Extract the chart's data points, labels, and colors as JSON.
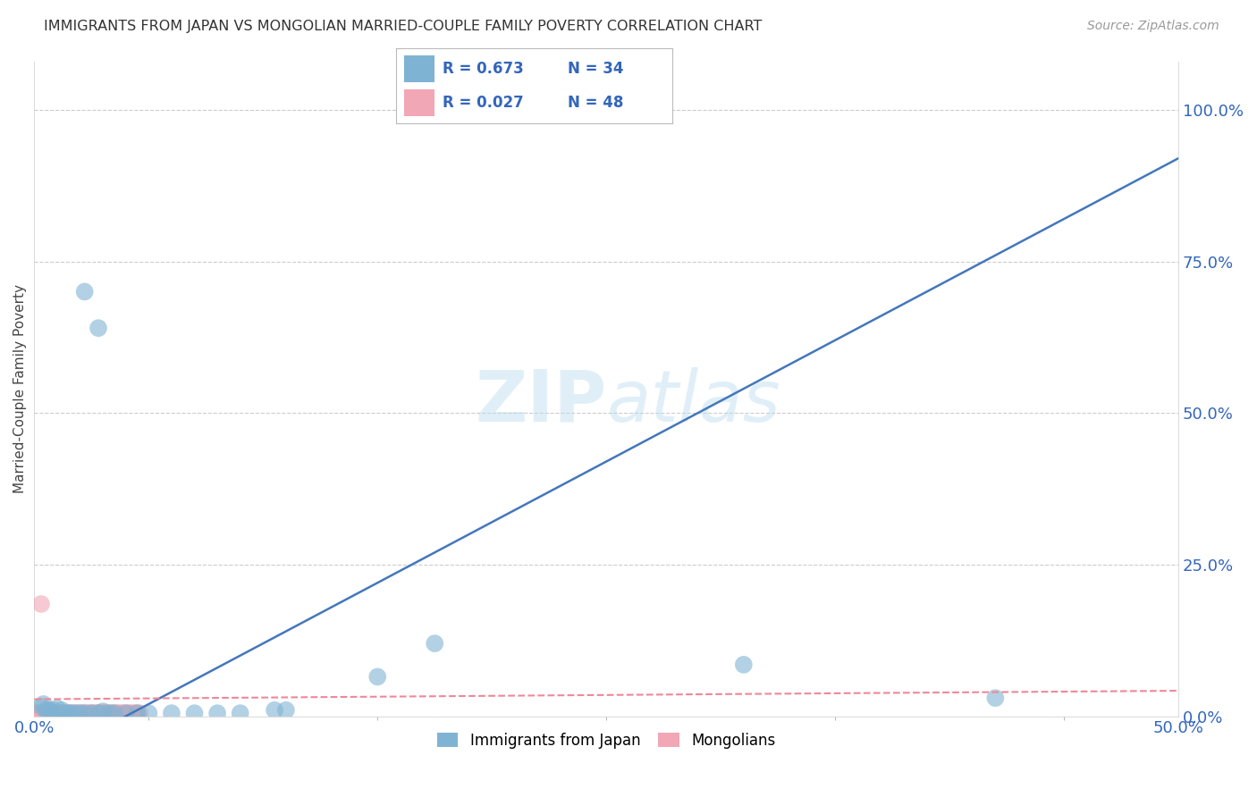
{
  "title": "IMMIGRANTS FROM JAPAN VS MONGOLIAN MARRIED-COUPLE FAMILY POVERTY CORRELATION CHART",
  "source": "Source: ZipAtlas.com",
  "ylabel": "Married-Couple Family Poverty",
  "xlim": [
    0.0,
    0.5
  ],
  "ylim": [
    0.0,
    1.08
  ],
  "ytick_labels": [
    "0.0%",
    "25.0%",
    "50.0%",
    "75.0%",
    "100.0%"
  ],
  "yticks": [
    0.0,
    0.25,
    0.5,
    0.75,
    1.0
  ],
  "watermark": "ZIPatlas",
  "blue_color": "#7FB3D3",
  "pink_color": "#F1A7B5",
  "trend_blue_color": "#4477BB",
  "trend_pink_color": "#EE8899",
  "blue_scatter": [
    [
      0.003,
      0.016
    ],
    [
      0.004,
      0.02
    ],
    [
      0.005,
      0.01
    ],
    [
      0.006,
      0.01
    ],
    [
      0.007,
      0.008
    ],
    [
      0.008,
      0.01
    ],
    [
      0.01,
      0.013
    ],
    [
      0.012,
      0.01
    ],
    [
      0.013,
      0.005
    ],
    [
      0.015,
      0.005
    ],
    [
      0.016,
      0.005
    ],
    [
      0.018,
      0.005
    ],
    [
      0.02,
      0.005
    ],
    [
      0.022,
      0.005
    ],
    [
      0.025,
      0.005
    ],
    [
      0.028,
      0.005
    ],
    [
      0.03,
      0.008
    ],
    [
      0.033,
      0.005
    ],
    [
      0.035,
      0.005
    ],
    [
      0.04,
      0.005
    ],
    [
      0.045,
      0.005
    ],
    [
      0.05,
      0.005
    ],
    [
      0.06,
      0.005
    ],
    [
      0.07,
      0.005
    ],
    [
      0.08,
      0.005
    ],
    [
      0.09,
      0.005
    ],
    [
      0.105,
      0.01
    ],
    [
      0.11,
      0.01
    ],
    [
      0.15,
      0.065
    ],
    [
      0.175,
      0.12
    ],
    [
      0.022,
      0.7
    ],
    [
      0.028,
      0.64
    ],
    [
      0.31,
      0.085
    ],
    [
      0.42,
      0.03
    ]
  ],
  "pink_scatter": [
    [
      0.001,
      0.005
    ],
    [
      0.002,
      0.005
    ],
    [
      0.003,
      0.005
    ],
    [
      0.004,
      0.005
    ],
    [
      0.005,
      0.005
    ],
    [
      0.006,
      0.005
    ],
    [
      0.007,
      0.005
    ],
    [
      0.008,
      0.005
    ],
    [
      0.009,
      0.005
    ],
    [
      0.01,
      0.005
    ],
    [
      0.011,
      0.005
    ],
    [
      0.012,
      0.005
    ],
    [
      0.013,
      0.005
    ],
    [
      0.014,
      0.005
    ],
    [
      0.015,
      0.005
    ],
    [
      0.016,
      0.005
    ],
    [
      0.017,
      0.005
    ],
    [
      0.018,
      0.005
    ],
    [
      0.019,
      0.005
    ],
    [
      0.02,
      0.005
    ],
    [
      0.021,
      0.005
    ],
    [
      0.022,
      0.005
    ],
    [
      0.023,
      0.005
    ],
    [
      0.024,
      0.005
    ],
    [
      0.025,
      0.005
    ],
    [
      0.026,
      0.005
    ],
    [
      0.027,
      0.005
    ],
    [
      0.028,
      0.005
    ],
    [
      0.029,
      0.005
    ],
    [
      0.03,
      0.005
    ],
    [
      0.031,
      0.005
    ],
    [
      0.032,
      0.005
    ],
    [
      0.033,
      0.005
    ],
    [
      0.034,
      0.005
    ],
    [
      0.035,
      0.005
    ],
    [
      0.036,
      0.005
    ],
    [
      0.037,
      0.005
    ],
    [
      0.038,
      0.005
    ],
    [
      0.039,
      0.005
    ],
    [
      0.04,
      0.005
    ],
    [
      0.041,
      0.005
    ],
    [
      0.042,
      0.005
    ],
    [
      0.043,
      0.005
    ],
    [
      0.044,
      0.005
    ],
    [
      0.045,
      0.005
    ],
    [
      0.046,
      0.005
    ],
    [
      0.003,
      0.185
    ]
  ],
  "blue_trend": [
    0.0,
    -0.08,
    0.5,
    0.92
  ],
  "pink_trend": [
    0.0,
    0.028,
    0.5,
    0.042
  ],
  "bg_color": "#FFFFFF",
  "grid_color": "#CCCCCC"
}
